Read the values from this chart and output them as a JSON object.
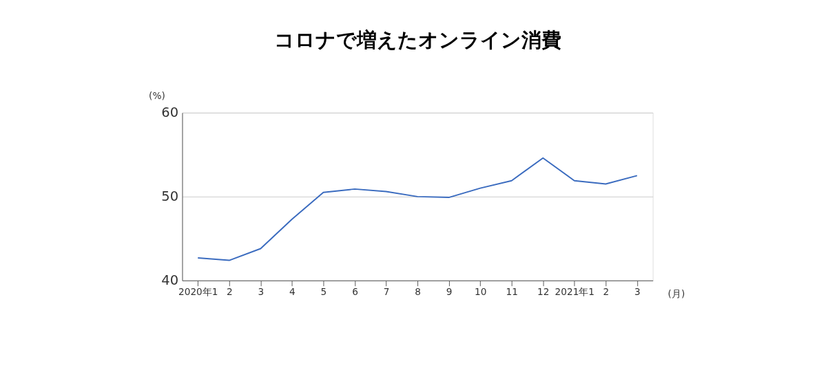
{
  "chart_data": {
    "type": "line",
    "title": "コロナで増えたオンライン消費",
    "xlabel": "(月)",
    "ylabel": "(%)",
    "categories": [
      "2020年1",
      "2",
      "3",
      "4",
      "5",
      "6",
      "7",
      "8",
      "9",
      "10",
      "11",
      "12",
      "2021年1",
      "2",
      "3"
    ],
    "series": [
      {
        "color": "#3a6bbf",
        "values": [
          42.7,
          42.4,
          43.8,
          47.3,
          50.5,
          50.9,
          50.6,
          50.0,
          49.9,
          51.0,
          51.9,
          54.6,
          51.9,
          51.5,
          52.5
        ]
      }
    ],
    "ylim": [
      40,
      60
    ],
    "yticks": [
      40,
      50,
      60
    ],
    "grid": "y",
    "legend": false,
    "marker": "none",
    "line_style": "solid"
  }
}
